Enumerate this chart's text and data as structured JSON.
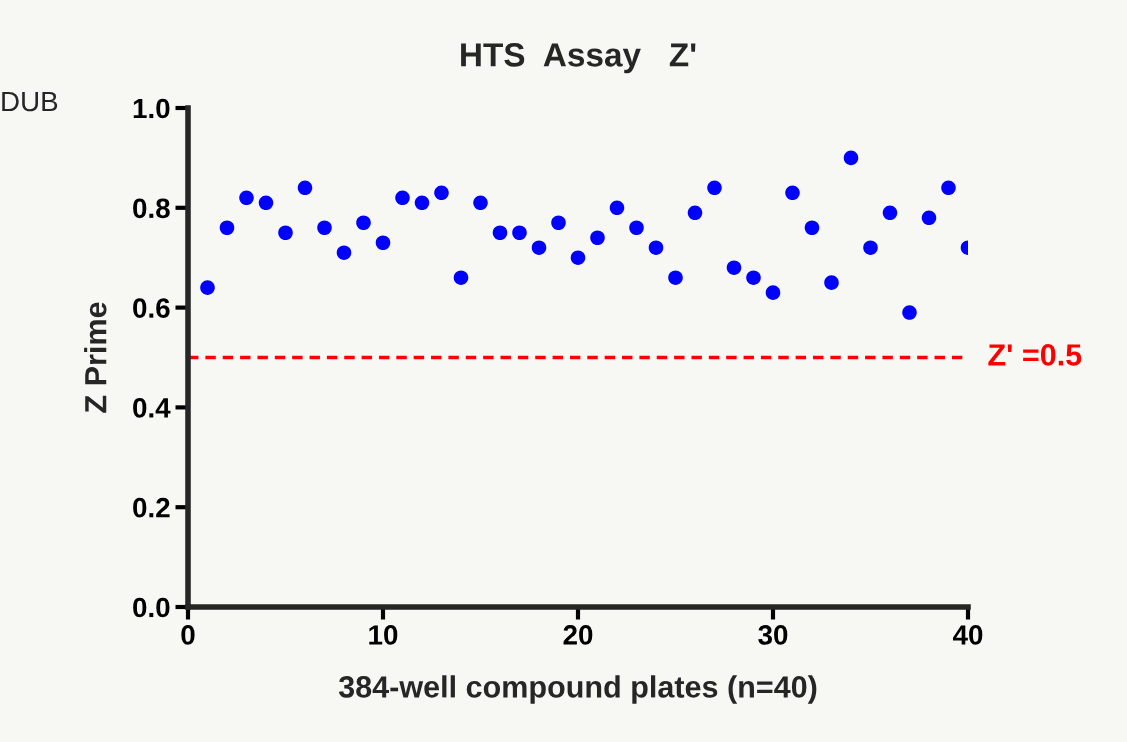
{
  "chart_data": {
    "type": "scatter",
    "title": "HTS  Assay   Z'",
    "xlabel": "384-well compound plates (n=40)",
    "ylabel": "Z Prime",
    "annotations": [
      "DUB"
    ],
    "x": [
      1,
      2,
      3,
      4,
      5,
      6,
      7,
      8,
      9,
      10,
      11,
      12,
      13,
      14,
      15,
      16,
      17,
      18,
      19,
      20,
      21,
      22,
      23,
      24,
      25,
      26,
      27,
      28,
      29,
      30,
      31,
      32,
      33,
      34,
      35,
      36,
      37,
      38,
      39,
      40
    ],
    "series": [
      {
        "color": "#0000ff",
        "values": [
          0.64,
          0.76,
          0.82,
          0.81,
          0.75,
          0.84,
          0.76,
          0.71,
          0.77,
          0.73,
          0.82,
          0.81,
          0.83,
          0.66,
          0.81,
          0.75,
          0.75,
          0.72,
          0.77,
          0.7,
          0.74,
          0.8,
          0.76,
          0.72,
          0.66,
          0.79,
          0.84,
          0.68,
          0.66,
          0.63,
          0.83,
          0.76,
          0.65,
          0.9,
          0.72,
          0.79,
          0.59,
          0.78,
          0.84,
          0.72
        ]
      }
    ],
    "xlim": [
      0,
      40
    ],
    "xticks": [
      0,
      10,
      20,
      30,
      40
    ],
    "ylim": [
      0,
      1.0
    ],
    "yticks": [
      {
        "value": 0,
        "label": "0.0"
      },
      {
        "value": 0.2,
        "label": "0.2"
      },
      {
        "value": 0.4,
        "label": "0.4"
      },
      {
        "value": 0.6,
        "label": "0.6"
      },
      {
        "value": 0.8,
        "label": "0.8"
      },
      {
        "value": 1.0,
        "label": "1.0"
      }
    ],
    "ref_lines": [
      {
        "axis": "y",
        "value": 0.5,
        "label": "Z' =0.5",
        "color": "#ff0000",
        "line_style": "dashed"
      }
    ],
    "marker": "circle",
    "grid": false,
    "legend": false
  }
}
